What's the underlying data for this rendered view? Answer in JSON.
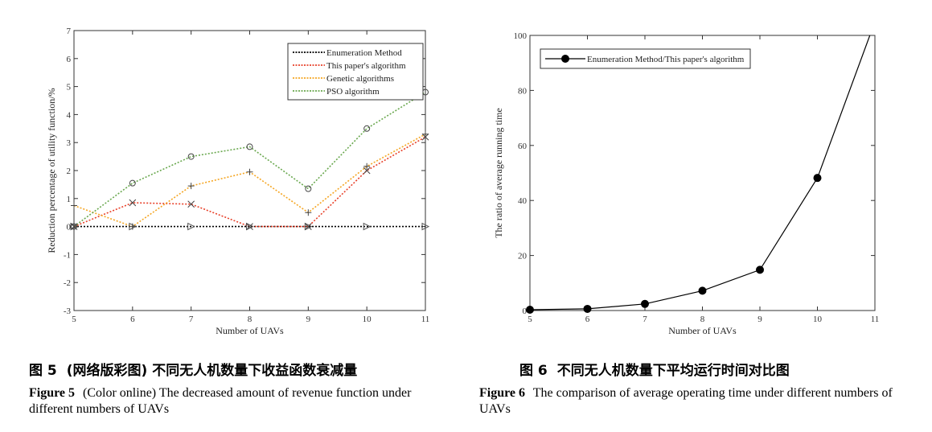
{
  "figure5": {
    "caption_cn_num": "图 5",
    "caption_cn_text": "(网络版彩图) 不同无人机数量下收益函数衰减量",
    "caption_en_label": "Figure 5",
    "caption_en_text": "(Color online) The decreased amount of revenue function under different numbers of UAVs"
  },
  "figure6": {
    "caption_cn_num": "图 6",
    "caption_cn_text": "不同无人机数量下平均运行时间对比图",
    "caption_en_label": "Figure 6",
    "caption_en_text": "The comparison of average operating time under different numbers of UAVs"
  },
  "chart_data": [
    {
      "type": "line",
      "xlabel": "Number of UAVs",
      "ylabel": "Reduction percentage of utility function/%",
      "xlim": [
        5,
        11
      ],
      "ylim": [
        -3,
        7
      ],
      "xticks": [
        5,
        6,
        7,
        8,
        9,
        10,
        11
      ],
      "yticks": [
        -3,
        -2,
        -1,
        0,
        1,
        2,
        3,
        4,
        5,
        6,
        7
      ],
      "legend_position": "top-right",
      "grid": false,
      "x": [
        5,
        6,
        7,
        8,
        9,
        10,
        11
      ],
      "series": [
        {
          "name": "Enumeration Method",
          "color": "#000000",
          "marker": "triangle",
          "values": [
            0,
            0,
            0,
            0,
            0,
            0,
            0
          ]
        },
        {
          "name": "This paper's algorithm",
          "color": "#e8412a",
          "marker": "x",
          "values": [
            0,
            0.85,
            0.8,
            0,
            0,
            2.0,
            3.2
          ]
        },
        {
          "name": "Genetic algorithms",
          "color": "#f5a623",
          "marker": "plus",
          "values": [
            0.75,
            0,
            1.45,
            1.95,
            0.5,
            2.15,
            3.3
          ]
        },
        {
          "name": "PSO algorithm",
          "color": "#6aa84f",
          "marker": "circle",
          "values": [
            0,
            1.55,
            2.5,
            2.85,
            1.35,
            3.5,
            4.8
          ]
        }
      ]
    },
    {
      "type": "line",
      "xlabel": "Number of UAVs",
      "ylabel": "The ratio of average running time",
      "xlim": [
        5,
        11
      ],
      "ylim": [
        0,
        100
      ],
      "xticks": [
        5,
        6,
        7,
        8,
        9,
        10,
        11
      ],
      "yticks": [
        0,
        20,
        40,
        60,
        80,
        100
      ],
      "legend_position": "top-left",
      "grid": false,
      "x": [
        5,
        6,
        7,
        8,
        9,
        10,
        11
      ],
      "series": [
        {
          "name": "Enumeration Method/This paper's algorithm",
          "color": "#000000",
          "marker": "filled-circle",
          "values": [
            0.3,
            0.6,
            2.4,
            7.2,
            14.8,
            48.2,
            105
          ]
        }
      ]
    }
  ]
}
